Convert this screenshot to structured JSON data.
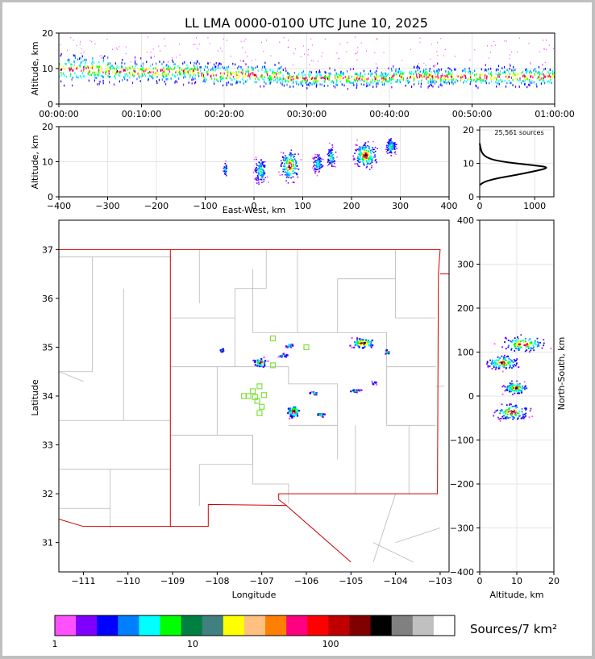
{
  "chart_data": [
    {
      "type": "scatter",
      "title": "LL LMA 0000-0100 UTC June 10, 2025",
      "panel": "time-height",
      "ylabel": "Altitude, km",
      "ylim": [
        0,
        20
      ],
      "yticks": [
        "0",
        "10",
        "20"
      ],
      "xticks": [
        "00:00:00",
        "00:10:00",
        "00:20:00",
        "00:30:00",
        "00:40:00",
        "00:50:00",
        "01:00:00"
      ],
      "x_range_minutes": [
        0,
        60
      ],
      "bands": [
        {
          "x": [
            0,
            6
          ],
          "y": [
            4,
            16
          ]
        },
        {
          "x": [
            6,
            17
          ],
          "y": [
            5,
            14
          ]
        },
        {
          "x": [
            17,
            27
          ],
          "y": [
            4,
            13
          ]
        },
        {
          "x": [
            27,
            40
          ],
          "y": [
            4,
            11
          ]
        },
        {
          "x": [
            40,
            60
          ],
          "y": [
            4,
            12
          ]
        }
      ]
    },
    {
      "type": "scatter",
      "panel": "east-west vs altitude",
      "xlabel": "East-West, km",
      "ylabel": "Altitude, km",
      "xlim": [
        -400,
        400
      ],
      "ylim": [
        0,
        20
      ],
      "xticks": [
        "−400",
        "−300",
        "−200",
        "−100",
        "0",
        "100",
        "200",
        "300",
        "400"
      ],
      "yticks": [
        "0",
        "10",
        "20"
      ],
      "clusters": [
        {
          "x": [
            -65,
            -55
          ],
          "y": [
            5,
            11
          ]
        },
        {
          "x": [
            -5,
            30
          ],
          "y": [
            2,
            13
          ]
        },
        {
          "x": [
            45,
            100
          ],
          "y": [
            3,
            15
          ]
        },
        {
          "x": [
            115,
            145
          ],
          "y": [
            6,
            13
          ]
        },
        {
          "x": [
            145,
            170
          ],
          "y": [
            7,
            16
          ]
        },
        {
          "x": [
            195,
            260
          ],
          "y": [
            7,
            17
          ]
        },
        {
          "x": [
            265,
            295
          ],
          "y": [
            11,
            18
          ]
        }
      ]
    },
    {
      "type": "line",
      "panel": "altitude histogram",
      "annotation": "25,561 sources",
      "xlim": [
        0,
        1350
      ],
      "xticks": [
        "0",
        "1000"
      ],
      "ylim": [
        0,
        21
      ],
      "yticks": [
        "0",
        "10",
        "20"
      ],
      "profile": [
        {
          "count": 0,
          "alt": 3.5
        },
        {
          "count": 80,
          "alt": 4.5
        },
        {
          "count": 300,
          "alt": 5.5
        },
        {
          "count": 650,
          "alt": 6.5
        },
        {
          "count": 950,
          "alt": 7.5
        },
        {
          "count": 1300,
          "alt": 8.8
        },
        {
          "count": 950,
          "alt": 9.5
        },
        {
          "count": 400,
          "alt": 10.5
        },
        {
          "count": 150,
          "alt": 11.5
        },
        {
          "count": 40,
          "alt": 13
        },
        {
          "count": 10,
          "alt": 15
        },
        {
          "count": 0,
          "alt": 16
        }
      ]
    },
    {
      "type": "scatter",
      "panel": "plan view map",
      "xlabel": "Longitude",
      "ylabel": "Latitude",
      "xlim": [
        -111.55,
        -102.8
      ],
      "ylim": [
        30.4,
        37.6
      ],
      "xticks": [
        "−111",
        "−110",
        "−109",
        "−108",
        "−107",
        "−106",
        "−105",
        "−104",
        "−103"
      ],
      "yticks": [
        "31",
        "32",
        "33",
        "34",
        "35",
        "36",
        "37"
      ],
      "clusters": [
        {
          "lon": -107.9,
          "lat": 34.95,
          "w": 0.15,
          "h": 0.1,
          "n": 12
        },
        {
          "lon": -107.05,
          "lat": 34.7,
          "w": 0.4,
          "h": 0.25,
          "n": 35
        },
        {
          "lon": -106.4,
          "lat": 35.05,
          "w": 0.3,
          "h": 0.1,
          "n": 18
        },
        {
          "lon": -106.55,
          "lat": 34.85,
          "w": 0.3,
          "h": 0.1,
          "n": 14
        },
        {
          "lon": -104.75,
          "lat": 35.1,
          "w": 0.8,
          "h": 0.3,
          "n": 60
        },
        {
          "lon": -104.2,
          "lat": 34.92,
          "w": 0.2,
          "h": 0.12,
          "n": 10
        },
        {
          "lon": -104.5,
          "lat": 34.28,
          "w": 0.2,
          "h": 0.08,
          "n": 8
        },
        {
          "lon": -104.9,
          "lat": 34.12,
          "w": 0.4,
          "h": 0.08,
          "n": 16
        },
        {
          "lon": -105.85,
          "lat": 34.07,
          "w": 0.3,
          "h": 0.08,
          "n": 12
        },
        {
          "lon": -106.3,
          "lat": 33.7,
          "w": 0.4,
          "h": 0.35,
          "n": 55
        },
        {
          "lon": -105.7,
          "lat": 33.63,
          "w": 0.25,
          "h": 0.15,
          "n": 12
        }
      ],
      "stations": [
        [
          -106.75,
          35.18
        ],
        [
          -106.0,
          35.0
        ],
        [
          -106.75,
          34.63
        ],
        [
          -107.05,
          34.2
        ],
        [
          -107.2,
          34.1
        ],
        [
          -107.4,
          34.0
        ],
        [
          -107.3,
          34.0
        ],
        [
          -107.15,
          33.98
        ],
        [
          -106.95,
          34.02
        ],
        [
          -107.1,
          33.9
        ],
        [
          -107.0,
          33.78
        ],
        [
          -107.05,
          33.65
        ]
      ]
    },
    {
      "type": "scatter",
      "panel": "altitude vs north-south",
      "xlabel": "Altitude, km",
      "ylabel": "North-South, km",
      "xlim": [
        0,
        20
      ],
      "ylim": [
        -400,
        400
      ],
      "xticks": [
        "0",
        "10",
        "20"
      ],
      "yticks": [
        "400",
        "300",
        "200",
        "100",
        "0",
        "−100",
        "−200",
        "−300",
        "−400"
      ],
      "clusters": [
        {
          "alt": [
            3,
            20
          ],
          "ns": [
            95,
            145
          ]
        },
        {
          "alt": [
            0,
            12
          ],
          "ns": [
            55,
            100
          ]
        },
        {
          "alt": [
            5,
            14
          ],
          "ns": [
            0,
            40
          ]
        },
        {
          "alt": [
            2,
            15
          ],
          "ns": [
            -60,
            -10
          ]
        }
      ]
    }
  ],
  "colorbar": {
    "label": "Sources/7 km²",
    "ticks": [
      "1",
      "10",
      "100"
    ],
    "colors": [
      "#ff50ff",
      "#8000ff",
      "#0000ff",
      "#0080ff",
      "#00ffff",
      "#00ff00",
      "#008040",
      "#408080",
      "#ffff00",
      "#ffc080",
      "#ff8000",
      "#ff0080",
      "#ff0000",
      "#c00000",
      "#800000",
      "#000000",
      "#808080",
      "#c0c0c0",
      "#ffffff"
    ]
  }
}
